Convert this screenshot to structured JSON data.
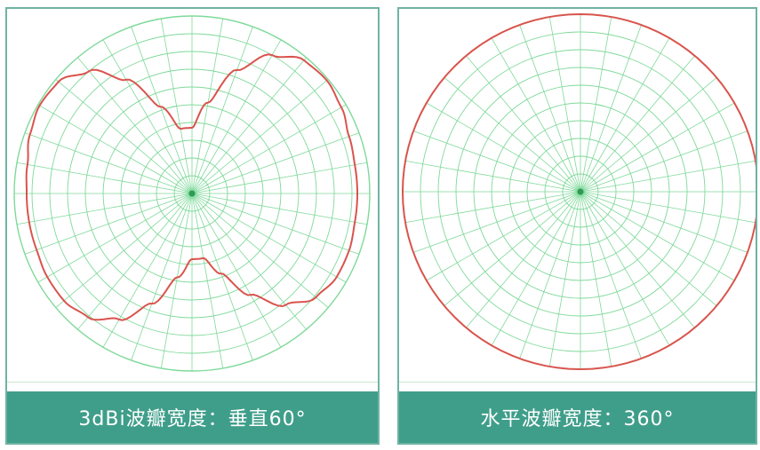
{
  "colors": {
    "grid": "#7fd99a",
    "pattern": "#d9544d",
    "caption_bg": "#3f9e8a",
    "caption_text": "#ffffff",
    "frame": "#6fb3a3"
  },
  "panels": [
    {
      "caption": "3dBi波瓣宽度：垂直60°"
    },
    {
      "caption": "水平波瓣宽度：360°"
    }
  ],
  "chart_data": [
    {
      "type": "polar",
      "title": "",
      "grid": true,
      "radial_rings": 10,
      "angular_spokes": 36,
      "series": [
        {
          "angles_deg": [
            0,
            10,
            20,
            30,
            40,
            50,
            60,
            70,
            80,
            90,
            100,
            110,
            120,
            130,
            140,
            150,
            160,
            170,
            180,
            190,
            200,
            210,
            220,
            230,
            240,
            250,
            260,
            270,
            280,
            290,
            300,
            310,
            320,
            330,
            340,
            350
          ],
          "radius": [
            0.37,
            0.52,
            0.74,
            0.9,
            0.98,
            0.99,
            0.97,
            0.94,
            0.93,
            0.93,
            0.93,
            0.94,
            0.94,
            0.91,
            0.82,
            0.66,
            0.48,
            0.37,
            0.37,
            0.48,
            0.66,
            0.82,
            0.91,
            0.94,
            0.94,
            0.93,
            0.93,
            0.93,
            0.94,
            0.97,
            0.99,
            0.98,
            0.9,
            0.74,
            0.52,
            0.37
          ]
        }
      ]
    },
    {
      "type": "polar",
      "title": "",
      "grid": true,
      "radial_rings": 10,
      "angular_spokes": 36,
      "series": [
        {
          "angles_deg": [
            0,
            30,
            60,
            90,
            120,
            150,
            180,
            210,
            240,
            270,
            300,
            330
          ],
          "radius": [
            1,
            1,
            1,
            1,
            1,
            1,
            1,
            1,
            1,
            1,
            1,
            1
          ]
        }
      ]
    }
  ]
}
